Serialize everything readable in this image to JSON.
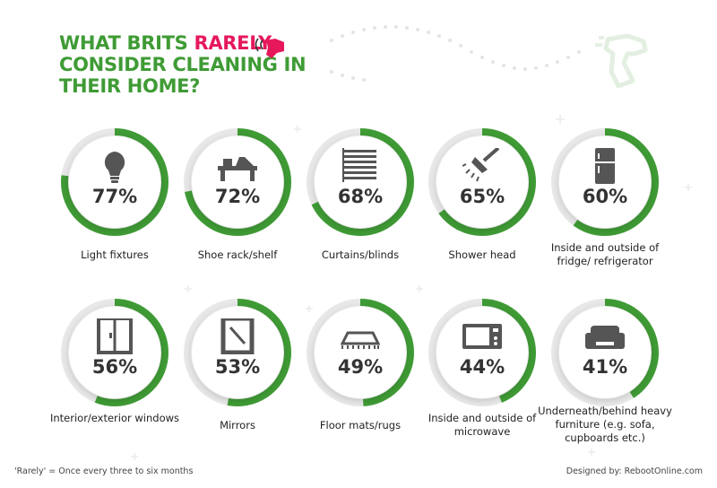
{
  "title": {
    "line1_a": "WHAT BRITS ",
    "line1_b": "RARELY",
    "line2": "CONSIDER CLEANING IN",
    "line3": "THEIR HOME?"
  },
  "colors": {
    "green": "#3f9b35",
    "pink": "#e6185b",
    "track": "#e8e8e8",
    "text": "#333333"
  },
  "chart_data": {
    "type": "bar",
    "categories": [
      "Light fixtures",
      "Shoe rack/shelf",
      "Curtains/blinds",
      "Shower head",
      "Inside and outside of fridge/ refrigerator",
      "Interior/exterior windows",
      "Mirrors",
      "Floor mats/rugs",
      "Inside and outside of microwave",
      "Underneath/behind heavy furniture (e.g. sofa, cupboards etc.)"
    ],
    "values": [
      77,
      72,
      68,
      65,
      60,
      56,
      53,
      49,
      44,
      41
    ],
    "title": "WHAT BRITS RARELY CONSIDER CLEANING IN THEIR HOME?",
    "ylim": [
      0,
      100
    ]
  },
  "items": [
    {
      "pct": "77%",
      "label": "Light fixtures",
      "icon": "light-bulb-icon"
    },
    {
      "pct": "72%",
      "label": "Shoe rack/shelf",
      "icon": "shoe-rack-icon"
    },
    {
      "pct": "68%",
      "label": "Curtains/blinds",
      "icon": "blinds-icon"
    },
    {
      "pct": "65%",
      "label": "Shower head",
      "icon": "shower-head-icon"
    },
    {
      "pct": "60%",
      "label": "Inside and outside of fridge/ refrigerator",
      "icon": "fridge-icon"
    },
    {
      "pct": "56%",
      "label": "Interior/exterior windows",
      "icon": "window-icon"
    },
    {
      "pct": "53%",
      "label": "Mirrors",
      "icon": "mirror-icon"
    },
    {
      "pct": "49%",
      "label": "Floor mats/rugs",
      "icon": "rug-icon"
    },
    {
      "pct": "44%",
      "label": "Inside and outside of microwave",
      "icon": "microwave-icon"
    },
    {
      "pct": "41%",
      "label": "Underneath/behind heavy furniture (e.g. sofa, cupboards etc.)",
      "icon": "sofa-icon"
    }
  ],
  "footnote": "'Rarely' = Once every three to six months",
  "credit": "Designed by: RebootOnline.com"
}
